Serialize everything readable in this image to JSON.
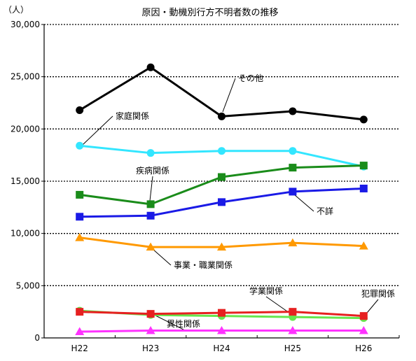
{
  "chart_data": {
    "type": "line",
    "title": "原因・動機別行方不明者数の推移",
    "ylabel": "（人）",
    "xlabel": "",
    "categories": [
      "H22",
      "H23",
      "H24",
      "H25",
      "H26"
    ],
    "ylim": [
      0,
      30000
    ],
    "yticks": [
      0,
      5000,
      10000,
      15000,
      20000,
      25000,
      30000
    ],
    "ytick_labels": [
      "0",
      "5,000",
      "10,000",
      "15,000",
      "20,000",
      "25,000",
      "30,000"
    ],
    "grid": "horizontal-dotted",
    "series": [
      {
        "name": "その他",
        "color": "#000000",
        "marker": "circle",
        "values": [
          21800,
          25900,
          21200,
          21700,
          20900
        ]
      },
      {
        "name": "家庭関係",
        "color": "#33e6ff",
        "marker": "circle",
        "values": [
          18400,
          17700,
          17900,
          17900,
          16400
        ]
      },
      {
        "name": "疾病関係",
        "color": "#1a8c1a",
        "marker": "square",
        "values": [
          13700,
          12800,
          15400,
          16300,
          16500
        ]
      },
      {
        "name": "不詳",
        "color": "#1a1ae6",
        "marker": "square",
        "values": [
          11600,
          11700,
          13000,
          14000,
          14300
        ]
      },
      {
        "name": "事業・職業関係",
        "color": "#ff9900",
        "marker": "triangle",
        "values": [
          9600,
          8700,
          8700,
          9100,
          8800
        ]
      },
      {
        "name": "学業関係",
        "color": "#66e64d",
        "marker": "circle",
        "values": [
          2600,
          2200,
          2100,
          2000,
          1900
        ]
      },
      {
        "name": "犯罪関係",
        "color": "#e62020",
        "marker": "square",
        "values": [
          2500,
          2300,
          2400,
          2500,
          2100
        ]
      },
      {
        "name": "異性関係",
        "color": "#ff33ff",
        "marker": "triangle",
        "values": [
          600,
          700,
          700,
          700,
          700
        ]
      }
    ],
    "annotations": [
      {
        "series": 0,
        "text": "その他",
        "point": 2
      },
      {
        "series": 1,
        "text": "家庭関係",
        "point": 0
      },
      {
        "series": 2,
        "text": "疾病関係",
        "point": 1
      },
      {
        "series": 3,
        "text": "不詳",
        "point": 3
      },
      {
        "series": 4,
        "text": "事業・職業関係",
        "point": 1
      },
      {
        "series": 5,
        "text": "学業関係",
        "point": 3
      },
      {
        "series": 6,
        "text": "犯罪関係",
        "point": 4
      },
      {
        "series": 7,
        "text": "異性関係",
        "point": 1
      }
    ]
  }
}
